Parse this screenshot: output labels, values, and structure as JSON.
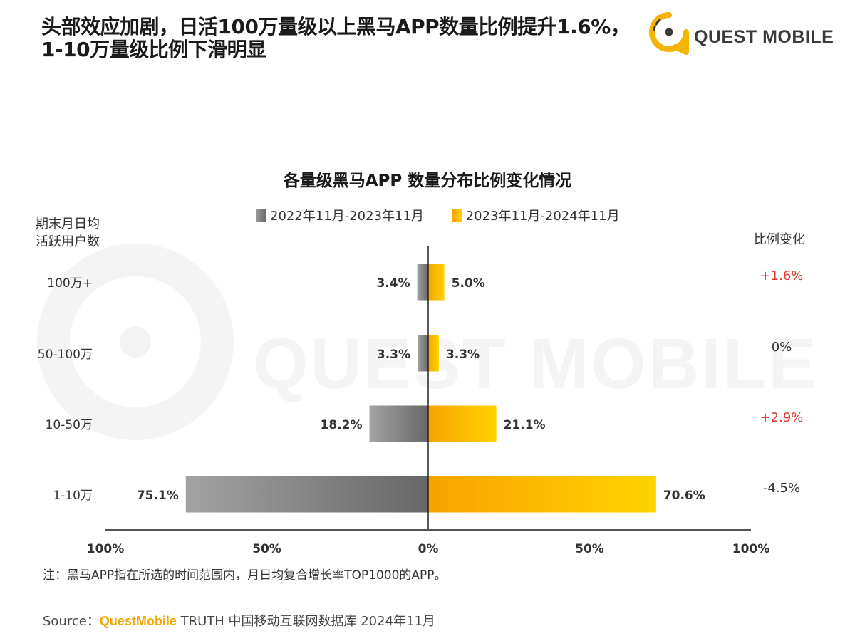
{
  "header": {
    "headline_line1": "头部效应加剧，日活100万量级以上黑马APP数量比例提升1.6%，",
    "headline_line2": "1-10万量级比例下滑明显",
    "logo_text": "QUEST MOBILE",
    "watermark_text": "QUEST MOBILE"
  },
  "colors": {
    "series1": "#7f7f7f",
    "series2": "#ffc000",
    "positive": "#e03c31",
    "brand": "#f2a900"
  },
  "chart_data": {
    "type": "bar",
    "orientation": "horizontal-diverging",
    "title": "各量级黑马APP 数量分布比例变化情况",
    "ylabel": "期末月日均\n活跃用户数",
    "change_header": "比例变化",
    "categories": [
      "100万+",
      "50-100万",
      "10-50万",
      "1-10万"
    ],
    "series": [
      {
        "name": "2022年11月-2023年11月",
        "values": [
          3.4,
          3.3,
          18.2,
          75.1
        ],
        "labels": [
          "3.4%",
          "3.3%",
          "18.2%",
          "75.1%"
        ],
        "direction": "left"
      },
      {
        "name": "2023年11月-2024年11月",
        "values": [
          5.0,
          3.3,
          21.1,
          70.6
        ],
        "labels": [
          "5.0%",
          "3.3%",
          "21.1%",
          "70.6%"
        ],
        "direction": "right"
      }
    ],
    "changes": [
      "+1.6%",
      "0%",
      "+2.9%",
      "-4.5%"
    ],
    "change_positive": [
      true,
      false,
      true,
      false
    ],
    "xlim": [
      -100,
      100
    ],
    "xticks": [
      -100,
      -50,
      0,
      50,
      100
    ],
    "xtick_labels": [
      "100%",
      "50%",
      "0%",
      "50%",
      "100%"
    ],
    "legend_position": "top-center"
  },
  "footer": {
    "note": "注：黑马APP指在所选的时间范围内，月日均复合增长率TOP1000的APP。",
    "source_prefix": "Source：",
    "source_brand": "QuestMobile",
    "source_rest": " TRUTH 中国移动互联网数据库 2024年11月"
  }
}
